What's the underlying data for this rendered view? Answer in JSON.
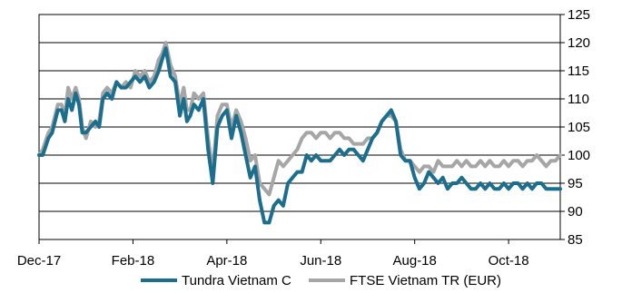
{
  "chart_data": {
    "type": "line",
    "title": "",
    "xlabel": "",
    "ylabel": "",
    "grid": true,
    "legend_position": "bottom",
    "x_ticks": [
      "Dec-17",
      "Feb-18",
      "Apr-18",
      "Jun-18",
      "Aug-18",
      "Oct-18"
    ],
    "x_range": [
      "Dec-17",
      "Nov-18"
    ],
    "y_ticks": [
      85,
      90,
      95,
      100,
      105,
      110,
      115,
      120,
      125
    ],
    "ylim": [
      85,
      125
    ],
    "y_axis_side": "right",
    "series": [
      {
        "name": "Tundra Vietnam C",
        "color": "#1b6e8e",
        "x": [
          0.0,
          0.08,
          0.2,
          0.28,
          0.4,
          0.48,
          0.55,
          0.62,
          0.7,
          0.78,
          0.85,
          0.92,
          1.0,
          1.1,
          1.2,
          1.28,
          1.36,
          1.45,
          1.55,
          1.65,
          1.75,
          1.85,
          1.95,
          2.05,
          2.15,
          2.25,
          2.35,
          2.45,
          2.55,
          2.62,
          2.7,
          2.8,
          2.9,
          3.0,
          3.08,
          3.15,
          3.22,
          3.3,
          3.4,
          3.5,
          3.6,
          3.7,
          3.8,
          3.9,
          4.0,
          4.1,
          4.2,
          4.3,
          4.4,
          4.5,
          4.6,
          4.7,
          4.8,
          4.9,
          5.0,
          5.1,
          5.2,
          5.3,
          5.4,
          5.5,
          5.6,
          5.7,
          5.8,
          5.9,
          6.0,
          6.1,
          6.2,
          6.3,
          6.4,
          6.5,
          6.6,
          6.7,
          6.8,
          6.9,
          7.0,
          7.1,
          7.2,
          7.3,
          7.4,
          7.5,
          7.6,
          7.7,
          7.8,
          7.9,
          8.0,
          8.1,
          8.2,
          8.3,
          8.4,
          8.5,
          8.6,
          8.7,
          8.8,
          8.9,
          9.0,
          9.1,
          9.2,
          9.3,
          9.4,
          9.5,
          9.6,
          9.7,
          9.8,
          9.9,
          10.0,
          10.1,
          10.2,
          10.3,
          10.4,
          10.5,
          10.6,
          10.7,
          10.8,
          10.9,
          11.0,
          11.1
        ],
        "values": [
          100,
          100,
          103,
          104,
          108,
          108,
          106,
          110,
          108,
          111,
          109,
          104,
          104,
          105,
          106,
          105,
          110,
          111,
          110,
          113,
          112,
          112,
          113,
          114,
          113,
          114,
          112,
          113,
          115,
          117,
          119,
          114,
          113,
          107,
          110,
          106,
          107,
          109,
          108,
          110,
          101,
          95,
          105,
          107,
          108,
          103,
          107,
          104,
          100,
          96,
          98,
          92,
          88,
          88,
          91,
          92,
          91,
          95,
          96,
          97,
          97,
          100,
          99,
          100,
          99,
          99,
          99,
          100,
          101,
          100,
          101,
          101,
          100,
          99,
          101,
          103,
          104,
          106,
          107,
          108,
          106,
          100,
          99,
          99,
          96,
          94,
          95,
          97,
          96,
          95,
          96,
          94,
          95,
          95,
          96,
          95,
          94,
          94,
          95,
          94,
          95,
          94,
          94,
          95,
          94,
          95,
          95,
          94,
          95,
          94,
          95,
          95,
          94,
          94,
          94,
          94
        ]
      },
      {
        "name": "FTSE Vietnam TR (EUR)",
        "color": "#a6a6a6",
        "x": [
          0.0,
          0.08,
          0.2,
          0.28,
          0.4,
          0.48,
          0.55,
          0.62,
          0.7,
          0.78,
          0.85,
          0.92,
          1.0,
          1.1,
          1.2,
          1.28,
          1.36,
          1.45,
          1.55,
          1.65,
          1.75,
          1.85,
          1.95,
          2.05,
          2.15,
          2.25,
          2.35,
          2.45,
          2.55,
          2.62,
          2.7,
          2.8,
          2.9,
          3.0,
          3.08,
          3.15,
          3.22,
          3.3,
          3.4,
          3.5,
          3.6,
          3.7,
          3.8,
          3.9,
          4.0,
          4.1,
          4.2,
          4.3,
          4.4,
          4.5,
          4.6,
          4.7,
          4.8,
          4.9,
          5.0,
          5.1,
          5.2,
          5.3,
          5.4,
          5.5,
          5.6,
          5.7,
          5.8,
          5.9,
          6.0,
          6.1,
          6.2,
          6.3,
          6.4,
          6.5,
          6.6,
          6.7,
          6.8,
          6.9,
          7.0,
          7.1,
          7.2,
          7.3,
          7.4,
          7.5,
          7.6,
          7.7,
          7.8,
          7.9,
          8.0,
          8.1,
          8.2,
          8.3,
          8.4,
          8.5,
          8.6,
          8.7,
          8.8,
          8.9,
          9.0,
          9.1,
          9.2,
          9.3,
          9.4,
          9.5,
          9.6,
          9.7,
          9.8,
          9.9,
          10.0,
          10.1,
          10.2,
          10.3,
          10.4,
          10.5,
          10.6,
          10.7,
          10.8,
          10.9,
          11.0,
          11.1
        ],
        "values": [
          100,
          101,
          104,
          105,
          109,
          109,
          107,
          112,
          110,
          112,
          110,
          105,
          103,
          106,
          105,
          106,
          111,
          112,
          111,
          113,
          112,
          113,
          112,
          115,
          114,
          115,
          113,
          114,
          117,
          118,
          120,
          116,
          114,
          109,
          112,
          108,
          108,
          111,
          110,
          111,
          103,
          97,
          107,
          109,
          109,
          105,
          108,
          106,
          103,
          99,
          100,
          95,
          94,
          93,
          96,
          99,
          98,
          99,
          100,
          101,
          103,
          104,
          104,
          103,
          104,
          104,
          103,
          104,
          104,
          103,
          103,
          102,
          102,
          102,
          103,
          103,
          104,
          106,
          107,
          107,
          106,
          101,
          99,
          99,
          98,
          97,
          98,
          98,
          97,
          99,
          98,
          98,
          98,
          99,
          98,
          99,
          98,
          98,
          99,
          98,
          99,
          98,
          98,
          99,
          98,
          99,
          99,
          98,
          99,
          99,
          100,
          99,
          98,
          99,
          99,
          100
        ]
      }
    ]
  }
}
